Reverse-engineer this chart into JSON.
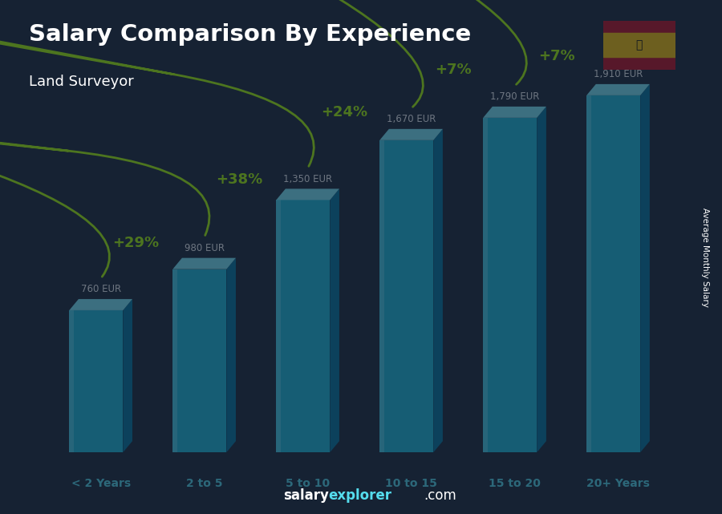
{
  "title": "Salary Comparison By Experience",
  "subtitle": "Land Surveyor",
  "categories": [
    "< 2 Years",
    "2 to 5",
    "5 to 10",
    "10 to 15",
    "15 to 20",
    "20+ Years"
  ],
  "values": [
    760,
    980,
    1350,
    1670,
    1790,
    1910
  ],
  "value_labels": [
    "760 EUR",
    "980 EUR",
    "1,350 EUR",
    "1,670 EUR",
    "1,790 EUR",
    "1,910 EUR"
  ],
  "pct_changes": [
    "+29%",
    "+38%",
    "+24%",
    "+7%",
    "+7%"
  ],
  "cyan_mid": "#1ABFDF",
  "cyan_dark": "#0077A0",
  "cyan_top": "#7EEEFF",
  "cyan_highlight": "#7FF0FF",
  "text_color_white": "#FFFFFF",
  "text_color_cyan": "#55DDEE",
  "text_color_green": "#AAFF00",
  "ylabel": "Average Monthly Salary",
  "ylim": [
    0,
    2200
  ],
  "bg_color": "#1a2535"
}
